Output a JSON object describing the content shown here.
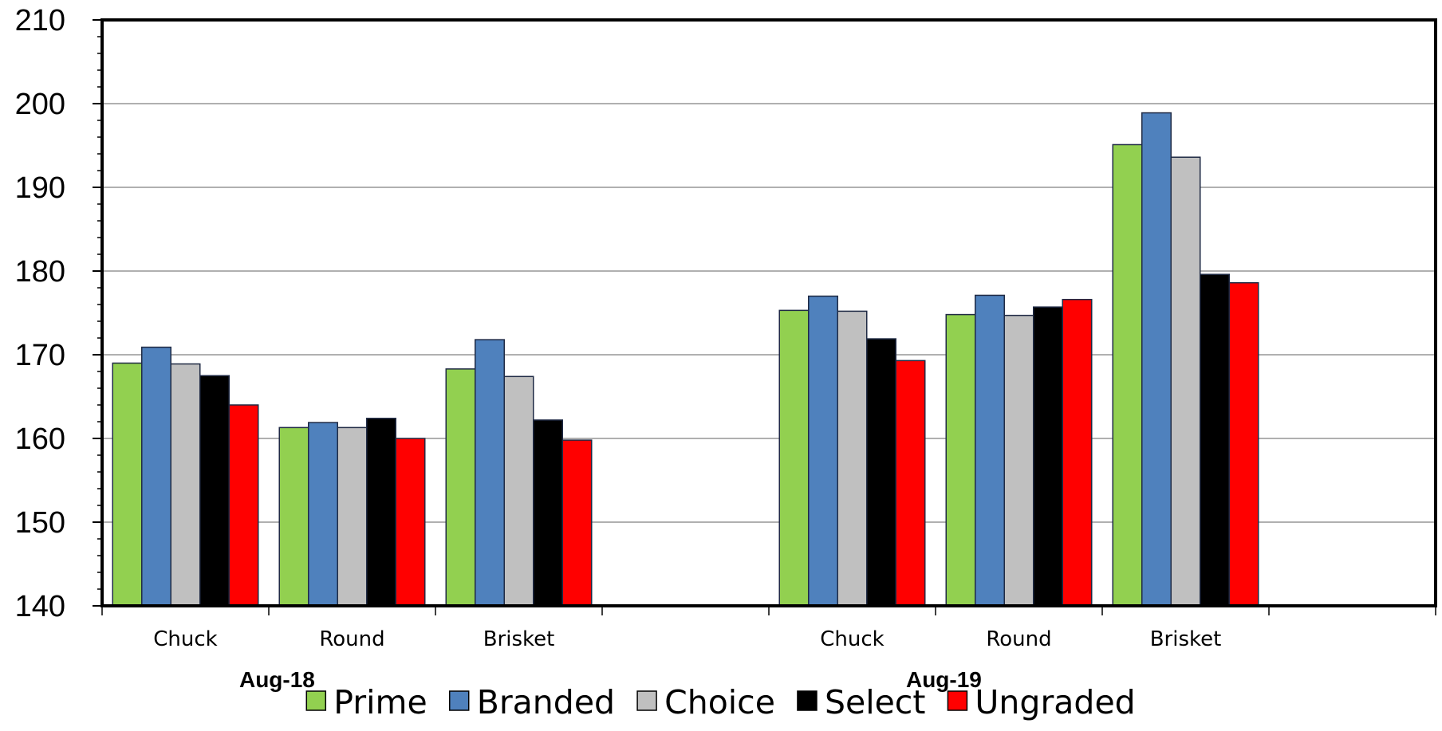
{
  "chart_data": {
    "type": "bar",
    "title": "",
    "xlabel": "",
    "ylabel": "",
    "ylim": [
      140,
      210
    ],
    "yticks": [
      140,
      150,
      160,
      170,
      180,
      190,
      200,
      210
    ],
    "grid": true,
    "legend_position": "bottom",
    "groups": [
      {
        "label": "Aug-18",
        "categories": [
          "Chuck",
          "Round",
          "Brisket"
        ]
      },
      {
        "label": "Aug-19",
        "categories": [
          "Chuck",
          "Round",
          "Brisket"
        ]
      }
    ],
    "series": [
      {
        "name": "Prime",
        "color": "#92D050",
        "values": [
          169.0,
          161.3,
          168.3,
          175.3,
          174.8,
          195.1
        ]
      },
      {
        "name": "Branded",
        "color": "#4F81BD",
        "values": [
          170.9,
          161.9,
          171.8,
          177.0,
          177.1,
          198.9
        ]
      },
      {
        "name": "Choice",
        "color": "#C0C0C0",
        "values": [
          168.9,
          161.3,
          167.4,
          175.2,
          174.7,
          193.6
        ]
      },
      {
        "name": "Select",
        "color": "#000000",
        "values": [
          167.5,
          162.4,
          162.2,
          171.9,
          175.7,
          179.6
        ]
      },
      {
        "name": "Ungraded",
        "color": "#FF0000",
        "values": [
          164.0,
          160.0,
          159.8,
          169.3,
          176.6,
          178.6
        ]
      }
    ]
  }
}
